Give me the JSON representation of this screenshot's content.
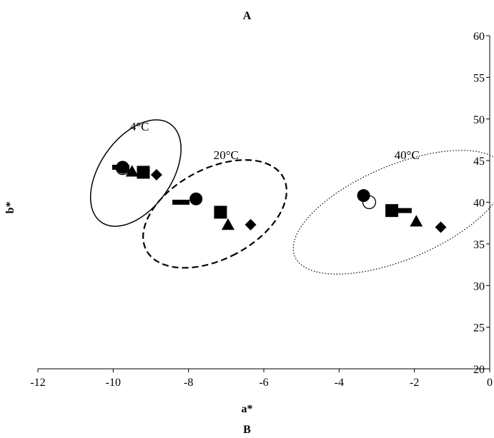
{
  "panel_label": "A",
  "next_panel_label": "B",
  "chart_data": {
    "type": "scatter",
    "title": "A",
    "xlabel": "a*",
    "ylabel": "b*",
    "xlim": [
      -12,
      0
    ],
    "ylim": [
      20,
      60
    ],
    "x_ticks": [
      -12,
      -10,
      -8,
      -6,
      -4,
      -2,
      0
    ],
    "y_ticks": [
      20,
      25,
      30,
      35,
      40,
      45,
      50,
      55,
      60
    ],
    "y_axis_side": "right",
    "grid": false,
    "legend": "none",
    "series": [
      {
        "marker": "dash",
        "points": [
          [
            -9.8,
            44.2
          ],
          [
            -8.2,
            40.0
          ],
          [
            -2.3,
            39.0
          ]
        ]
      },
      {
        "marker": "open-circle",
        "points": [
          [
            -9.75,
            44.1
          ],
          [
            -3.2,
            40.0
          ]
        ]
      },
      {
        "marker": "filled-circle",
        "points": [
          [
            -9.75,
            44.2
          ],
          [
            -7.8,
            40.4
          ],
          [
            -3.35,
            40.8
          ]
        ]
      },
      {
        "marker": "filled-triangle",
        "points": [
          [
            -9.5,
            43.7
          ],
          [
            -6.95,
            37.3
          ],
          [
            -1.95,
            37.7
          ]
        ]
      },
      {
        "marker": "filled-square",
        "points": [
          [
            -9.2,
            43.6
          ],
          [
            -7.15,
            38.8
          ],
          [
            -2.6,
            39.0
          ]
        ]
      },
      {
        "marker": "filled-diamond",
        "points": [
          [
            -8.85,
            43.3
          ],
          [
            -6.35,
            37.3
          ],
          [
            -1.3,
            37.0
          ]
        ]
      }
    ],
    "groups": [
      {
        "label": "4°C",
        "outline": "solid",
        "center": [
          -9.4,
          43.5
        ],
        "rx_data": 0.95,
        "ry_data": 7.2,
        "rotation_deg": 35
      },
      {
        "label": "20°C",
        "outline": "dashed",
        "center": [
          -7.3,
          38.6
        ],
        "rx_data": 1.2,
        "ry_data": 9.3,
        "rotation_deg": 62
      },
      {
        "label": "40°C",
        "outline": "dotted",
        "center": [
          -2.4,
          38.8
        ],
        "rx_data": 1.25,
        "ry_data": 13.6,
        "rotation_deg": 67
      }
    ],
    "group_label_positions": [
      [
        -9.3,
        48.6
      ],
      [
        -7.0,
        45.2
      ],
      [
        -2.2,
        45.2
      ]
    ]
  }
}
